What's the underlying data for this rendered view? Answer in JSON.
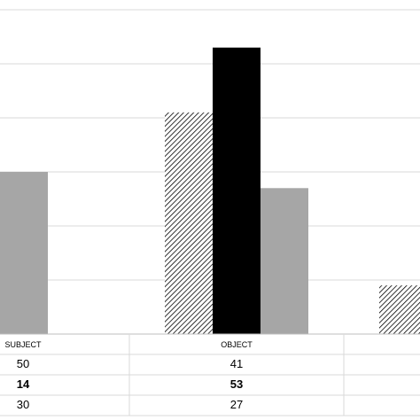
{
  "chart_data": {
    "type": "bar",
    "categories": [
      "SUBJECT",
      "OBJECT",
      ""
    ],
    "series": [
      {
        "values": [
          50,
          41,
          9
        ],
        "fill": "hatch"
      },
      {
        "values": [
          14,
          53,
          null
        ],
        "fill": "#000000"
      },
      {
        "values": [
          30,
          27,
          null
        ],
        "fill": "#a6a6a6"
      }
    ],
    "table_rows": [
      [
        "50",
        "41",
        ""
      ],
      [
        "14",
        "53",
        ""
      ],
      [
        "30",
        "27",
        ""
      ]
    ],
    "ylim": [
      0,
      60
    ],
    "grid": true,
    "colors": {
      "grid": "#d9d9d9",
      "solid": "#000000",
      "gray": "#a6a6a6"
    }
  }
}
